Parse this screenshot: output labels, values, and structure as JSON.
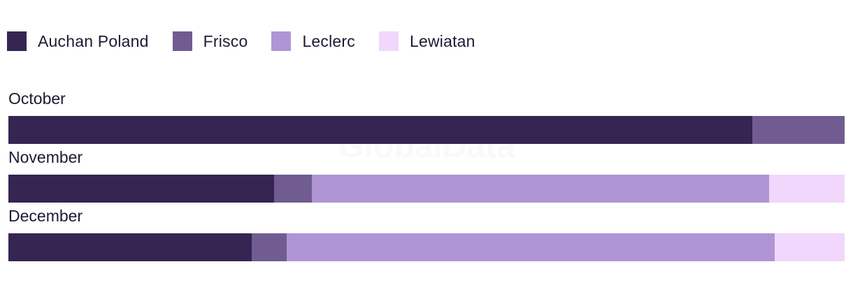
{
  "chart_data": {
    "type": "bar",
    "orientation": "horizontal",
    "stacked": true,
    "normalized": true,
    "categories": [
      "October",
      "November",
      "December"
    ],
    "series": [
      {
        "name": "Auchan Poland",
        "color": "#362453",
        "values": [
          89.0,
          31.8,
          29.1
        ]
      },
      {
        "name": "Frisco",
        "color": "#705c91",
        "values": [
          11.0,
          4.5,
          4.2
        ]
      },
      {
        "name": "Leclerc",
        "color": "#b095d4",
        "values": [
          0,
          54.7,
          58.3
        ]
      },
      {
        "name": "Lewiatan",
        "color": "#f0d7fb",
        "values": [
          0,
          9.0,
          8.4
        ]
      }
    ],
    "legend_position": "top-left",
    "grid": false
  },
  "watermark": "GlobalData"
}
